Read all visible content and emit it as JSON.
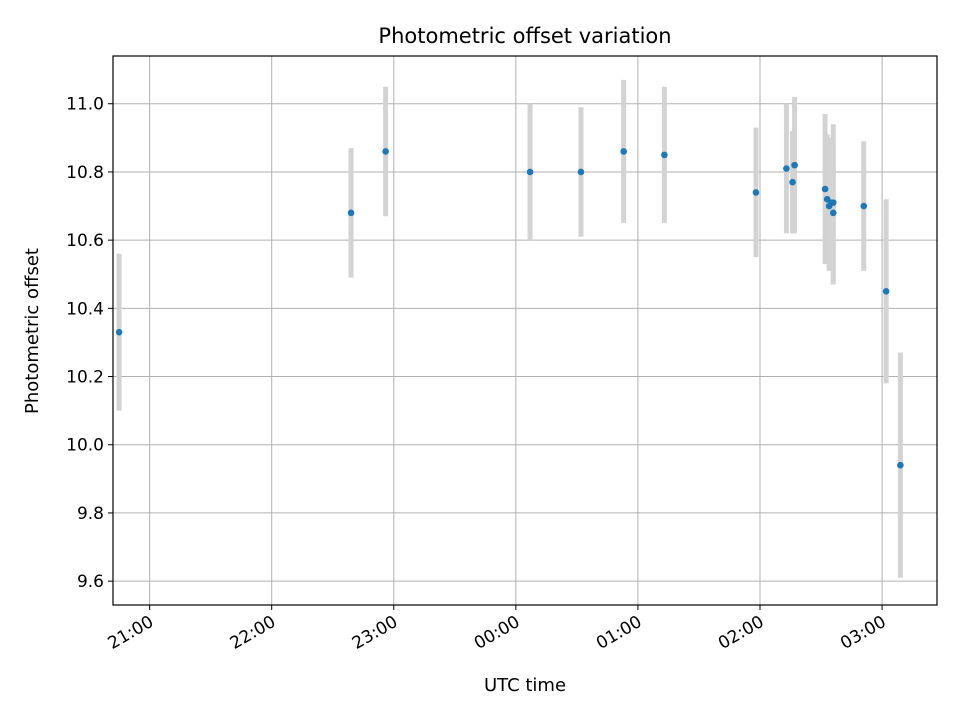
{
  "chart_data": {
    "type": "scatter",
    "title": "Photometric offset variation",
    "xlabel": "UTC time",
    "ylabel": "Photometric offset",
    "x_reference_date": "",
    "xlim": [
      "20:42",
      "03:27"
    ],
    "ylim": [
      9.53,
      11.14
    ],
    "grid": true,
    "y_ticks": [
      "9.6",
      "9.8",
      "10.0",
      "10.2",
      "10.4",
      "10.6",
      "10.8",
      "11.0"
    ],
    "x_ticks": [
      "21:00",
      "22:00",
      "23:00",
      "00:00",
      "01:00",
      "02:00",
      "03:00"
    ],
    "colors": {
      "marker": "#1f77b4",
      "errorbar": "#d3d3d3",
      "grid": "#b0b0b0"
    },
    "points": [
      {
        "x": "20:45",
        "y": 10.33,
        "err": 0.23
      },
      {
        "x": "22:39",
        "y": 10.68,
        "err": 0.19
      },
      {
        "x": "22:56",
        "y": 10.86,
        "err": 0.19
      },
      {
        "x": "00:07",
        "y": 10.8,
        "err": 0.2
      },
      {
        "x": "00:32",
        "y": 10.8,
        "err": 0.19
      },
      {
        "x": "00:53",
        "y": 10.86,
        "err": 0.21
      },
      {
        "x": "01:13",
        "y": 10.85,
        "err": 0.2
      },
      {
        "x": "01:58",
        "y": 10.74,
        "err": 0.19
      },
      {
        "x": "02:13",
        "y": 10.81,
        "err": 0.19
      },
      {
        "x": "02:16",
        "y": 10.77,
        "err": 0.15
      },
      {
        "x": "02:17",
        "y": 10.82,
        "err": 0.2
      },
      {
        "x": "02:32",
        "y": 10.75,
        "err": 0.22
      },
      {
        "x": "02:33",
        "y": 10.72,
        "err": 0.19
      },
      {
        "x": "02:34",
        "y": 10.7,
        "err": 0.19
      },
      {
        "x": "02:35",
        "y": 10.71,
        "err": 0.19
      },
      {
        "x": "02:36",
        "y": 10.71,
        "err": 0.23
      },
      {
        "x": "02:36",
        "y": 10.68,
        "err": 0.21
      },
      {
        "x": "02:51",
        "y": 10.7,
        "err": 0.19
      },
      {
        "x": "03:02",
        "y": 10.45,
        "err": 0.27
      },
      {
        "x": "03:09",
        "y": 9.94,
        "err": 0.33
      }
    ]
  }
}
